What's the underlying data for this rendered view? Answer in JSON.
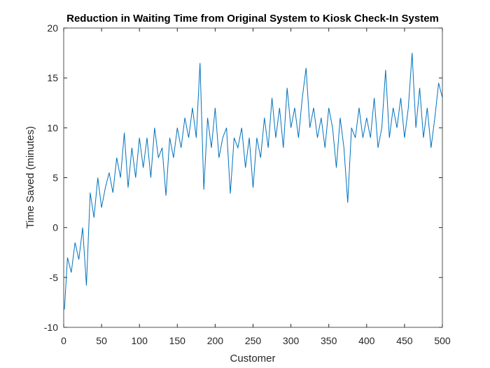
{
  "chart_data": {
    "type": "line",
    "title": "Reduction in Waiting Time from Original System to Kiosk Check-In System",
    "x_label": "Customer",
    "y_label": "Time Saved (minutes)",
    "x": [
      1,
      5,
      10,
      15,
      20,
      25,
      30,
      35,
      40,
      45,
      50,
      55,
      60,
      65,
      70,
      75,
      80,
      85,
      90,
      95,
      100,
      105,
      110,
      115,
      120,
      125,
      130,
      135,
      140,
      145,
      150,
      155,
      160,
      165,
      170,
      175,
      180,
      185,
      190,
      195,
      200,
      205,
      210,
      215,
      220,
      225,
      230,
      235,
      240,
      245,
      250,
      255,
      260,
      265,
      270,
      275,
      280,
      285,
      290,
      295,
      300,
      305,
      310,
      315,
      320,
      325,
      330,
      335,
      340,
      345,
      350,
      355,
      360,
      365,
      370,
      375,
      380,
      385,
      390,
      395,
      400,
      405,
      410,
      415,
      420,
      425,
      430,
      435,
      440,
      445,
      450,
      455,
      460,
      465,
      470,
      475,
      480,
      485,
      490,
      495,
      500
    ],
    "series": [
      {
        "color": "#0072bd",
        "values": [
          -8.2,
          -3,
          -4.5,
          -1.5,
          -3.2,
          0,
          -5.8,
          3.5,
          1,
          5,
          2,
          4,
          5.5,
          3.5,
          7,
          5,
          9.5,
          4,
          8,
          5,
          9,
          6,
          9,
          5,
          10,
          7,
          8,
          3.2,
          9,
          7,
          10,
          8,
          11,
          9,
          12,
          9,
          16.5,
          3.8,
          11,
          8,
          12,
          7,
          9,
          10,
          3.4,
          9,
          8,
          10,
          6,
          9,
          4,
          9,
          7,
          11,
          8,
          13,
          9,
          12,
          8,
          14,
          10,
          12,
          9,
          13,
          16,
          10,
          12,
          9,
          11,
          8,
          12,
          10,
          6,
          11,
          8,
          2.5,
          10,
          9,
          12,
          9,
          11,
          9,
          13,
          8,
          10,
          15.8,
          9,
          12,
          10,
          13,
          9,
          12,
          17.5,
          10,
          14,
          9,
          12,
          8,
          11,
          14.5,
          13
        ]
      }
    ],
    "xlim": [
      0,
      500
    ],
    "ylim": [
      -10,
      20
    ],
    "xticks": [
      0,
      50,
      100,
      150,
      200,
      250,
      300,
      350,
      400,
      450,
      500
    ],
    "yticks": [
      -10,
      -5,
      0,
      5,
      10,
      15,
      20
    ]
  }
}
